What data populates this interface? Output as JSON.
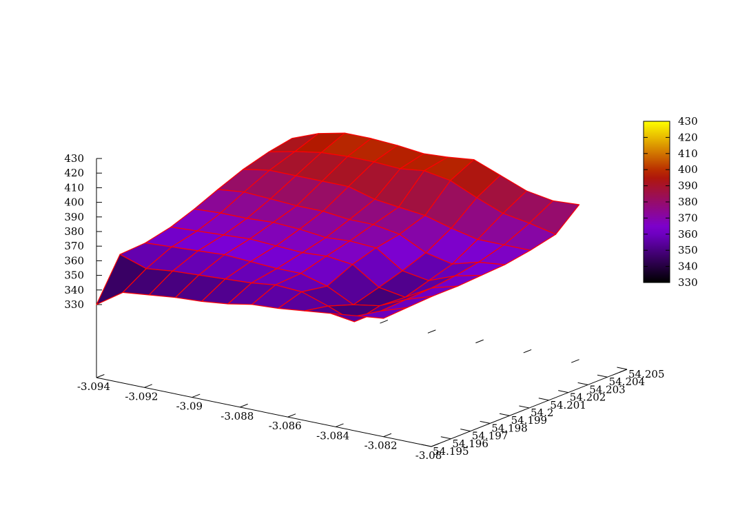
{
  "chart_data": {
    "type": "surface3d",
    "title": "",
    "xlabel": "",
    "ylabel": "",
    "zlabel": "",
    "x_range": [
      -3.094,
      -3.08
    ],
    "y_range": [
      54.195,
      54.205
    ],
    "z_range": [
      330,
      430
    ],
    "x_ticks": [
      "-3.094",
      "-3.092",
      "-3.09",
      "-3.088",
      "-3.086",
      "-3.084",
      "-3.082",
      "-3.08"
    ],
    "y_ticks": [
      "54.195",
      "54.196",
      "54.197",
      "54.198",
      "54.199",
      "54.2",
      "54.201",
      "54.202",
      "54.203",
      "54.204",
      "54.205"
    ],
    "z_ticks": [
      "330",
      "340",
      "350",
      "360",
      "370",
      "380",
      "390",
      "400",
      "410",
      "420",
      "430"
    ],
    "colorbar": {
      "placement": "right",
      "range": [
        330,
        430
      ],
      "ticks": [
        "330",
        "340",
        "350",
        "360",
        "370",
        "380",
        "390",
        "400",
        "410",
        "420",
        "430"
      ],
      "palette": [
        "#000000",
        "#7a00d6",
        "#b21800",
        "#ffff00"
      ]
    },
    "mesh_line_color": "#ff0000",
    "grid_x": [
      -3.094,
      -3.0929,
      -3.0918,
      -3.0907,
      -3.0896,
      -3.0885,
      -3.0875,
      -3.0864,
      -3.0853,
      -3.0842,
      -3.0831,
      -3.082
    ],
    "grid_y": [
      54.195,
      54.1962,
      54.1975,
      54.1988,
      54.2,
      54.2012,
      54.2025,
      54.2038,
      54.205
    ],
    "z": [
      [
        330,
        342,
        344,
        346,
        347,
        349,
        352,
        353,
        355,
        357,
        359,
        361
      ],
      [
        358,
        352,
        354,
        355,
        356,
        357,
        359,
        358,
        352,
        345,
        356,
        362
      ],
      [
        359,
        360,
        361,
        362,
        361,
        360,
        360,
        355,
        346,
        349,
        357,
        363
      ],
      [
        363,
        364,
        365,
        366,
        365,
        364,
        365,
        363,
        351,
        348,
        358,
        363
      ],
      [
        369,
        370,
        370,
        371,
        370,
        368,
        369,
        368,
        356,
        353,
        360,
        364
      ],
      [
        376,
        378,
        377,
        376,
        376,
        374,
        374,
        371,
        362,
        358,
        363,
        365
      ],
      [
        383,
        386,
        386,
        386,
        386,
        381,
        379,
        377,
        372,
        368,
        368,
        368
      ],
      [
        388,
        392,
        395,
        396,
        396,
        395,
        397,
        394,
        386,
        379,
        376,
        372
      ],
      [
        391,
        398,
        402,
        402,
        401,
        399,
        400,
        402,
        395,
        388,
        385,
        386
      ]
    ]
  }
}
